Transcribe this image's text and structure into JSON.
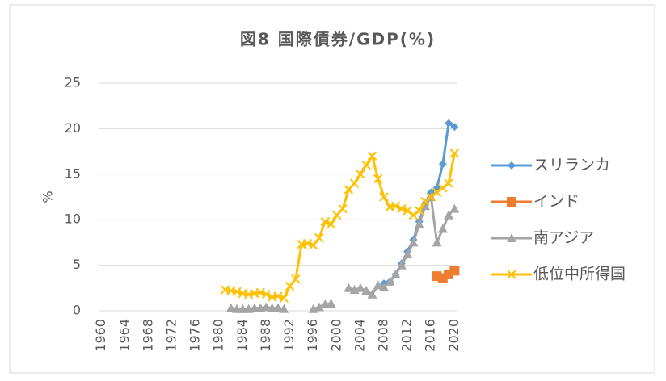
{
  "chart_data": {
    "type": "line",
    "title": "図8 国際債券/GDP(%)",
    "y_label": "%",
    "categories": [
      "1960",
      null,
      null,
      null,
      "1964",
      null,
      null,
      null,
      "1968",
      null,
      null,
      null,
      "1972",
      null,
      null,
      null,
      "1976",
      null,
      null,
      null,
      "1980",
      null,
      null,
      null,
      "1984",
      null,
      null,
      null,
      "1988",
      null,
      null,
      null,
      "1992",
      null,
      null,
      null,
      "1996",
      null,
      null,
      null,
      "2000",
      null,
      null,
      null,
      "2004",
      null,
      null,
      null,
      "2008",
      null,
      null,
      null,
      "2012",
      null,
      null,
      null,
      "2016",
      null,
      null,
      null,
      "2020"
    ],
    "ylim": [
      0,
      25
    ],
    "yticks": [
      0,
      5,
      10,
      15,
      20,
      25
    ],
    "grid": true,
    "legend": "right",
    "series": [
      {
        "name": "スリランカ",
        "color": "#5b9bd5",
        "marker": "diamond",
        "values": [
          null,
          null,
          null,
          null,
          null,
          null,
          null,
          null,
          null,
          null,
          null,
          null,
          null,
          null,
          null,
          null,
          null,
          null,
          null,
          null,
          null,
          null,
          null,
          null,
          null,
          null,
          null,
          null,
          null,
          null,
          null,
          null,
          null,
          null,
          null,
          null,
          null,
          null,
          null,
          null,
          null,
          null,
          null,
          null,
          null,
          null,
          null,
          null,
          3.0,
          3.2,
          4.0,
          5.2,
          6.5,
          7.8,
          9.8,
          11.8,
          13.0,
          13.5,
          16.1,
          20.6,
          20.2
        ]
      },
      {
        "name": "インド",
        "color": "#ed7d31",
        "marker": "square",
        "values": [
          null,
          null,
          null,
          null,
          null,
          null,
          null,
          null,
          null,
          null,
          null,
          null,
          null,
          null,
          null,
          null,
          null,
          null,
          null,
          null,
          null,
          null,
          null,
          null,
          null,
          null,
          null,
          null,
          null,
          null,
          null,
          null,
          null,
          null,
          null,
          null,
          null,
          null,
          null,
          null,
          null,
          null,
          null,
          null,
          null,
          null,
          null,
          null,
          null,
          null,
          null,
          null,
          null,
          null,
          null,
          null,
          null,
          3.8,
          3.6,
          4.0,
          4.4
        ]
      },
      {
        "name": "南アジア",
        "color": "#a5a5a5",
        "marker": "triangle",
        "values": [
          null,
          null,
          null,
          null,
          null,
          null,
          null,
          null,
          null,
          null,
          null,
          null,
          null,
          null,
          null,
          null,
          null,
          null,
          null,
          null,
          null,
          null,
          0.3,
          0.2,
          0.2,
          0.2,
          0.3,
          0.3,
          0.4,
          0.3,
          0.3,
          0.2,
          null,
          null,
          null,
          null,
          0.2,
          0.4,
          0.7,
          0.8,
          null,
          null,
          2.5,
          2.3,
          2.5,
          2.2,
          1.8,
          2.8,
          2.6,
          3.2,
          4.0,
          5.0,
          6.2,
          7.5,
          9.5,
          11.5,
          12.5,
          7.5,
          9.0,
          10.5,
          11.2
        ]
      },
      {
        "name": "低位中所得国",
        "color": "#ffc000",
        "marker": "x",
        "values": [
          null,
          null,
          null,
          null,
          null,
          null,
          null,
          null,
          null,
          null,
          null,
          null,
          null,
          null,
          null,
          null,
          null,
          null,
          null,
          null,
          null,
          2.3,
          2.2,
          2.1,
          1.9,
          1.8,
          1.9,
          2.0,
          1.8,
          1.5,
          1.6,
          1.4,
          2.7,
          3.5,
          7.3,
          7.4,
          7.2,
          8.0,
          9.8,
          9.5,
          10.5,
          11.2,
          13.3,
          14.0,
          15.0,
          16.0,
          17.0,
          14.5,
          12.5,
          11.4,
          11.5,
          11.2,
          11.0,
          10.5,
          11.0,
          12.0,
          12.5,
          13.0,
          13.5,
          14.0,
          17.3
        ]
      }
    ]
  }
}
